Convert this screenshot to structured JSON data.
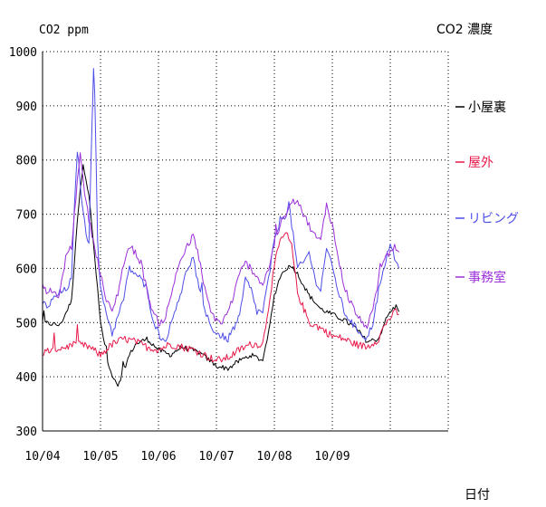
{
  "chart_data": {
    "type": "line",
    "title": "CO2 濃度",
    "ylabel": "CO2 ppm",
    "xlabel": "日付",
    "ylim": [
      300,
      1000
    ],
    "yticks": [
      300,
      400,
      500,
      600,
      700,
      800,
      900,
      1000
    ],
    "xlim": [
      0,
      7.2
    ],
    "xtick_labels": [
      "10/04",
      "10/05",
      "10/06",
      "10/07",
      "10/08",
      "10/09"
    ],
    "grid": true,
    "legend_position": "right",
    "series": [
      {
        "name": "小屋裏",
        "color": "#000000",
        "points": [
          [
            0.0,
            500
          ],
          [
            0.3,
            495
          ],
          [
            0.5,
            540
          ],
          [
            0.6,
            690
          ],
          [
            0.7,
            795
          ],
          [
            0.8,
            735
          ],
          [
            0.9,
            620
          ],
          [
            1.0,
            500
          ],
          [
            1.15,
            415
          ],
          [
            1.3,
            385
          ],
          [
            1.5,
            440
          ],
          [
            1.6,
            460
          ],
          [
            1.8,
            470
          ],
          [
            2.0,
            450
          ],
          [
            2.2,
            440
          ],
          [
            2.4,
            455
          ],
          [
            2.7,
            445
          ],
          [
            3.0,
            420
          ],
          [
            3.2,
            415
          ],
          [
            3.4,
            430
          ],
          [
            3.6,
            440
          ],
          [
            3.8,
            430
          ],
          [
            3.9,
            480
          ],
          [
            4.0,
            550
          ],
          [
            4.1,
            585
          ],
          [
            4.2,
            600
          ],
          [
            4.3,
            605
          ],
          [
            4.4,
            590
          ],
          [
            4.6,
            550
          ],
          [
            4.8,
            525
          ],
          [
            5.0,
            515
          ],
          [
            5.2,
            505
          ],
          [
            5.4,
            490
          ],
          [
            5.6,
            465
          ],
          [
            5.8,
            470
          ],
          [
            5.9,
            500
          ],
          [
            6.0,
            520
          ],
          [
            6.1,
            530
          ],
          [
            6.15,
            520
          ]
        ]
      },
      {
        "name": "屋外",
        "color": "#e8194a",
        "points": [
          [
            0.0,
            445
          ],
          [
            0.2,
            450
          ],
          [
            0.4,
            455
          ],
          [
            0.6,
            460
          ],
          [
            0.8,
            455
          ],
          [
            1.0,
            440
          ],
          [
            1.2,
            460
          ],
          [
            1.4,
            470
          ],
          [
            1.6,
            465
          ],
          [
            1.8,
            455
          ],
          [
            2.0,
            450
          ],
          [
            2.2,
            460
          ],
          [
            2.4,
            455
          ],
          [
            2.6,
            450
          ],
          [
            2.8,
            440
          ],
          [
            3.0,
            430
          ],
          [
            3.2,
            435
          ],
          [
            3.4,
            450
          ],
          [
            3.6,
            460
          ],
          [
            3.8,
            460
          ],
          [
            3.9,
            530
          ],
          [
            4.0,
            605
          ],
          [
            4.1,
            650
          ],
          [
            4.2,
            665
          ],
          [
            4.3,
            640
          ],
          [
            4.4,
            555
          ],
          [
            4.6,
            500
          ],
          [
            4.8,
            490
          ],
          [
            5.0,
            475
          ],
          [
            5.2,
            470
          ],
          [
            5.4,
            460
          ],
          [
            5.6,
            455
          ],
          [
            5.8,
            470
          ],
          [
            5.9,
            495
          ],
          [
            6.0,
            510
          ],
          [
            6.1,
            520
          ],
          [
            6.15,
            515
          ]
        ]
      },
      {
        "name": "リビング",
        "color": "#4d4de8",
        "points": [
          [
            0.0,
            535
          ],
          [
            0.1,
            530
          ],
          [
            0.2,
            545
          ],
          [
            0.3,
            555
          ],
          [
            0.4,
            560
          ],
          [
            0.5,
            580
          ],
          [
            0.55,
            710
          ],
          [
            0.6,
            820
          ],
          [
            0.65,
            760
          ],
          [
            0.7,
            700
          ],
          [
            0.8,
            640
          ],
          [
            0.85,
            860
          ],
          [
            0.88,
            970
          ],
          [
            0.9,
            930
          ],
          [
            0.95,
            650
          ],
          [
            1.0,
            560
          ],
          [
            1.1,
            520
          ],
          [
            1.2,
            480
          ],
          [
            1.3,
            510
          ],
          [
            1.4,
            545
          ],
          [
            1.5,
            600
          ],
          [
            1.6,
            590
          ],
          [
            1.7,
            580
          ],
          [
            1.8,
            560
          ],
          [
            1.9,
            510
          ],
          [
            2.0,
            480
          ],
          [
            2.1,
            465
          ],
          [
            2.2,
            490
          ],
          [
            2.3,
            530
          ],
          [
            2.4,
            560
          ],
          [
            2.5,
            600
          ],
          [
            2.6,
            620
          ],
          [
            2.7,
            560
          ],
          [
            2.8,
            520
          ],
          [
            2.9,
            495
          ],
          [
            3.0,
            480
          ],
          [
            3.2,
            470
          ],
          [
            3.4,
            510
          ],
          [
            3.5,
            580
          ],
          [
            3.6,
            560
          ],
          [
            3.7,
            520
          ],
          [
            3.8,
            520
          ],
          [
            3.9,
            580
          ],
          [
            4.0,
            650
          ],
          [
            4.1,
            690
          ],
          [
            4.2,
            700
          ],
          [
            4.25,
            720
          ],
          [
            4.3,
            680
          ],
          [
            4.4,
            600
          ],
          [
            4.5,
            610
          ],
          [
            4.6,
            630
          ],
          [
            4.7,
            580
          ],
          [
            4.8,
            560
          ],
          [
            4.9,
            640
          ],
          [
            5.0,
            600
          ],
          [
            5.1,
            560
          ],
          [
            5.2,
            520
          ],
          [
            5.4,
            490
          ],
          [
            5.5,
            480
          ],
          [
            5.6,
            470
          ],
          [
            5.7,
            500
          ],
          [
            5.8,
            560
          ],
          [
            5.9,
            600
          ],
          [
            6.0,
            650
          ],
          [
            6.1,
            610
          ],
          [
            6.15,
            600
          ]
        ]
      },
      {
        "name": "事務室",
        "color": "#9b2fd9",
        "points": [
          [
            0.0,
            560
          ],
          [
            0.2,
            555
          ],
          [
            0.3,
            550
          ],
          [
            0.35,
            590
          ],
          [
            0.4,
            620
          ],
          [
            0.5,
            640
          ],
          [
            0.6,
            760
          ],
          [
            0.65,
            820
          ],
          [
            0.7,
            760
          ],
          [
            0.8,
            690
          ],
          [
            0.9,
            640
          ],
          [
            1.0,
            590
          ],
          [
            1.1,
            540
          ],
          [
            1.2,
            520
          ],
          [
            1.3,
            555
          ],
          [
            1.4,
            610
          ],
          [
            1.5,
            640
          ],
          [
            1.6,
            630
          ],
          [
            1.7,
            610
          ],
          [
            1.8,
            560
          ],
          [
            1.9,
            520
          ],
          [
            2.0,
            500
          ],
          [
            2.1,
            505
          ],
          [
            2.2,
            540
          ],
          [
            2.3,
            590
          ],
          [
            2.4,
            620
          ],
          [
            2.5,
            640
          ],
          [
            2.6,
            660
          ],
          [
            2.7,
            620
          ],
          [
            2.8,
            560
          ],
          [
            2.9,
            520
          ],
          [
            3.0,
            505
          ],
          [
            3.1,
            500
          ],
          [
            3.2,
            520
          ],
          [
            3.3,
            550
          ],
          [
            3.4,
            590
          ],
          [
            3.5,
            610
          ],
          [
            3.6,
            600
          ],
          [
            3.7,
            585
          ],
          [
            3.8,
            570
          ],
          [
            3.9,
            600
          ],
          [
            4.0,
            640
          ],
          [
            4.1,
            680
          ],
          [
            4.2,
            700
          ],
          [
            4.3,
            720
          ],
          [
            4.4,
            730
          ],
          [
            4.5,
            700
          ],
          [
            4.6,
            680
          ],
          [
            4.7,
            660
          ],
          [
            4.8,
            650
          ],
          [
            4.9,
            720
          ],
          [
            5.0,
            680
          ],
          [
            5.1,
            620
          ],
          [
            5.2,
            570
          ],
          [
            5.3,
            540
          ],
          [
            5.4,
            520
          ],
          [
            5.5,
            500
          ],
          [
            5.6,
            495
          ],
          [
            5.7,
            520
          ],
          [
            5.8,
            580
          ],
          [
            5.9,
            620
          ],
          [
            6.0,
            630
          ],
          [
            6.1,
            640
          ],
          [
            6.15,
            630
          ]
        ]
      }
    ]
  }
}
